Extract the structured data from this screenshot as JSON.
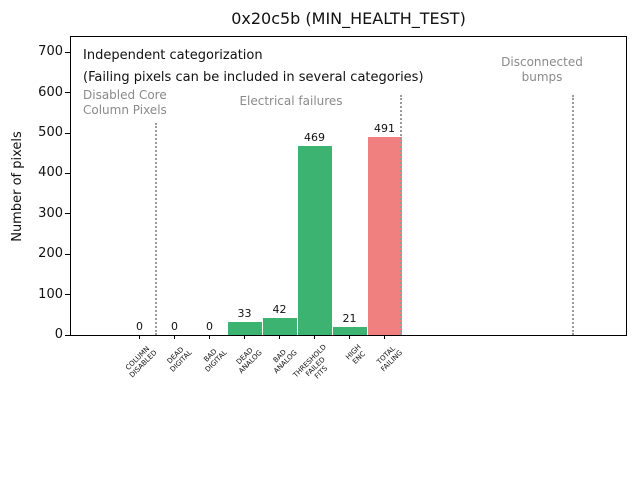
{
  "window": {
    "title": "0x20c5b (MIN_HEALTH_TEST)"
  },
  "chart_data": {
    "type": "bar",
    "title": "0x20c5b (MIN_HEALTH_TEST)",
    "xlabel": "",
    "ylabel": "Number of pixels",
    "ylim": [
      0,
      738
    ],
    "yticks": [
      0,
      100,
      200,
      300,
      400,
      500,
      600,
      700
    ],
    "grid": false,
    "legend": null,
    "categories": [
      "COLUMN\nDISABLED",
      "DEAD\nDIGITAL",
      "BAD\nDIGITAL",
      "DEAD\nANALOG",
      "BAD\nANALOG",
      "THRESHOLD\nFAILED\nFITS",
      "HIGH\nENC",
      "TOTAL\nFAILING"
    ],
    "values": [
      0,
      0,
      0,
      33,
      42,
      469,
      21,
      491
    ],
    "bar_colors": [
      "#3cb371",
      "#3cb371",
      "#3cb371",
      "#3cb371",
      "#3cb371",
      "#3cb371",
      "#3cb371",
      "#f08080"
    ],
    "annotations": {
      "line1": "Independent categorization",
      "line2": "(Failing pixels can be included in several categories)",
      "sections": [
        {
          "label": "Disabled Core\nColumn Pixels"
        },
        {
          "label": "Electrical failures"
        },
        {
          "label": "Disconnected\nbumps"
        }
      ]
    }
  },
  "colors": {
    "bar_green": "#3cb371",
    "bar_red": "#f08080",
    "section_text": "#8a8a8a",
    "divider": "#9a9a9a",
    "text": "#111111"
  }
}
